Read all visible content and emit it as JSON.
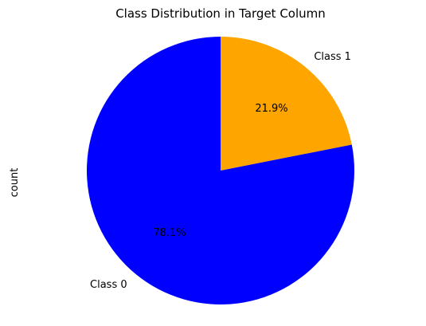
{
  "chart_data": {
    "type": "pie",
    "title": "Class Distribution in Target Column",
    "ylabel": "count",
    "start_angle_deg": 90,
    "direction": "clockwise",
    "slices": [
      {
        "label": "Class 1",
        "value": 21.9,
        "pct_label": "21.9%",
        "color": "#ffa500"
      },
      {
        "label": "Class 0",
        "value": 78.1,
        "pct_label": "78.1%",
        "color": "#0000ff"
      }
    ]
  }
}
